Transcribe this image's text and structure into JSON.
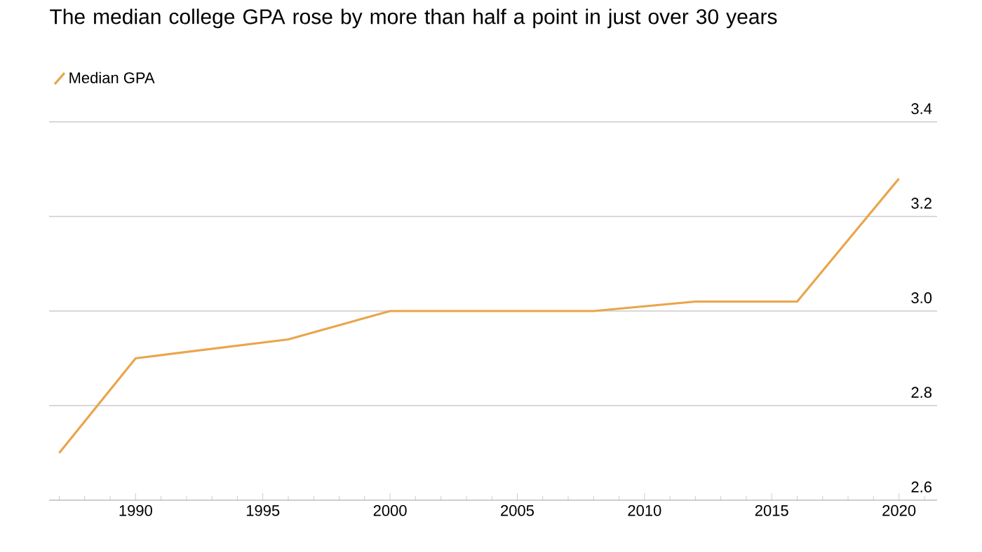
{
  "chart_data": {
    "type": "line",
    "title": "The median college GPA rose by more than half a point in just over 30 years",
    "x": [
      1987,
      1990,
      1996,
      2000,
      2008,
      2012,
      2016,
      2020
    ],
    "series": [
      {
        "name": "Median GPA",
        "color": "#e9a54b",
        "values": [
          2.7,
          2.9,
          2.94,
          3.0,
          3.0,
          3.02,
          3.02,
          3.28
        ]
      }
    ],
    "xlim": [
      1986.6,
      2021.5
    ],
    "ylim": [
      2.6,
      3.4
    ],
    "xticks": [
      {
        "value": 1987,
        "label": null
      },
      {
        "value": 1988,
        "label": null
      },
      {
        "value": 1989,
        "label": null
      },
      1990,
      {
        "value": 1991,
        "label": null
      },
      {
        "value": 1992,
        "label": null
      },
      {
        "value": 1993,
        "label": null
      },
      {
        "value": 1994,
        "label": null
      },
      1995,
      {
        "value": 1996,
        "label": null
      },
      {
        "value": 1997,
        "label": null
      },
      {
        "value": 1998,
        "label": null
      },
      {
        "value": 1999,
        "label": null
      },
      2000,
      {
        "value": 2001,
        "label": null
      },
      {
        "value": 2002,
        "label": null
      },
      {
        "value": 2003,
        "label": null
      },
      {
        "value": 2004,
        "label": null
      },
      2005,
      {
        "value": 2006,
        "label": null
      },
      {
        "value": 2007,
        "label": null
      },
      {
        "value": 2008,
        "label": null
      },
      {
        "value": 2009,
        "label": null
      },
      2010,
      {
        "value": 2011,
        "label": null
      },
      {
        "value": 2012,
        "label": null
      },
      {
        "value": 2013,
        "label": null
      },
      {
        "value": 2014,
        "label": null
      },
      2015,
      {
        "value": 2016,
        "label": null
      },
      {
        "value": 2017,
        "label": null
      },
      {
        "value": 2018,
        "label": null
      },
      {
        "value": 2019,
        "label": null
      },
      2020,
      {
        "value": 2021,
        "label": null
      }
    ],
    "yticks": [
      {
        "value": 2.6,
        "label": "2.6"
      },
      {
        "value": 2.8,
        "label": "2.8"
      },
      {
        "value": 3,
        "label": "3.0"
      },
      {
        "value": 3.2,
        "label": "3.2"
      },
      {
        "value": 3.4,
        "label": "3.4"
      }
    ],
    "grid": "y",
    "legend": "top left",
    "marker": "none",
    "line_style": "solid"
  }
}
